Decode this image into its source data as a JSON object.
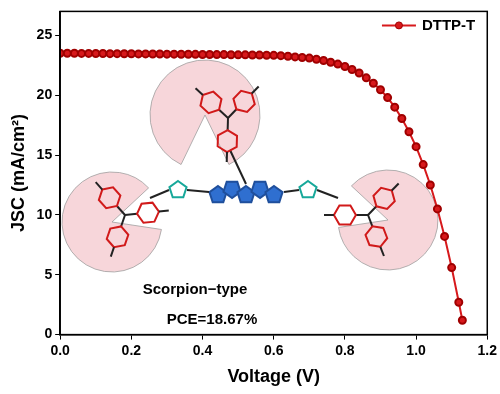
{
  "chart_data": {
    "type": "line",
    "x_label": "Voltage (V)",
    "y_label": "JSC (mA/cm²)",
    "annotations": [
      "Scorpion−type",
      "PCE=18.67%"
    ],
    "xlim": [
      0,
      1.2
    ],
    "xticks": [
      {
        "value": 0,
        "label": "0.0"
      },
      {
        "value": 0.2,
        "label": "0.2"
      },
      {
        "value": 0.4,
        "label": "0.4"
      },
      {
        "value": 0.6,
        "label": "0.6"
      },
      {
        "value": 0.8,
        "label": "0.8"
      },
      {
        "value": 1.0,
        "label": "1.0"
      },
      {
        "value": 1.2,
        "label": "1.2"
      }
    ],
    "ylim": [
      0,
      27
    ],
    "yticks": [
      0,
      5,
      10,
      15,
      20,
      25
    ],
    "grid": false,
    "legend": "upper right",
    "x": [
      0,
      0.02,
      0.04,
      0.06,
      0.08,
      0.1,
      0.12,
      0.14,
      0.16,
      0.18,
      0.2,
      0.22,
      0.24,
      0.26,
      0.28,
      0.3,
      0.32,
      0.34,
      0.36,
      0.38,
      0.4,
      0.42,
      0.44,
      0.46,
      0.48,
      0.5,
      0.52,
      0.54,
      0.56,
      0.58,
      0.6,
      0.62,
      0.64,
      0.66,
      0.68,
      0.7,
      0.72,
      0.74,
      0.76,
      0.78,
      0.8,
      0.82,
      0.84,
      0.86,
      0.88,
      0.9,
      0.92,
      0.94,
      0.96,
      0.98,
      1.0,
      1.02,
      1.04,
      1.06,
      1.08,
      1.1,
      1.12,
      1.13
    ],
    "series": [
      {
        "name": "DTTP-T",
        "color": "#d7191c",
        "marker": "circle",
        "line_style": "solid",
        "values": [
          23.5,
          23.5,
          23.5,
          23.49,
          23.49,
          23.48,
          23.48,
          23.47,
          23.47,
          23.46,
          23.46,
          23.45,
          23.45,
          23.44,
          23.44,
          23.43,
          23.43,
          23.42,
          23.42,
          23.41,
          23.4,
          23.4,
          23.39,
          23.39,
          23.38,
          23.37,
          23.37,
          23.36,
          23.35,
          23.34,
          23.33,
          23.3,
          23.25,
          23.2,
          23.15,
          23.1,
          23.0,
          22.9,
          22.75,
          22.6,
          22.4,
          22.15,
          21.85,
          21.45,
          21.0,
          20.45,
          19.8,
          19.0,
          18.05,
          16.95,
          15.7,
          14.2,
          12.5,
          10.5,
          8.2,
          5.6,
          2.7,
          1.2
        ]
      }
    ]
  }
}
